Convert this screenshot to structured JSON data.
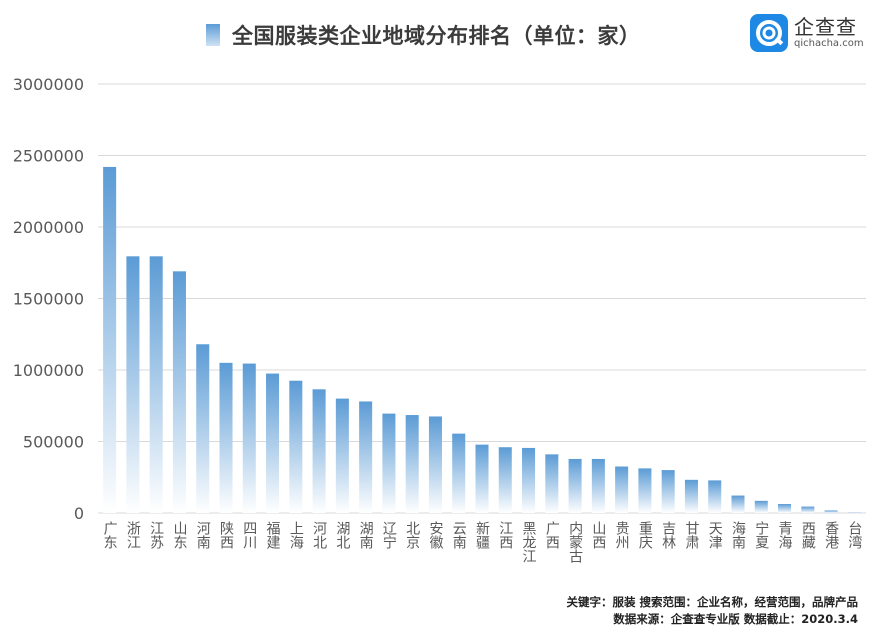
{
  "header": {
    "title": "全国服装类企业地域分布排名（单位：家）",
    "logo_cn": "企查查",
    "logo_en": "qichacha.com"
  },
  "footer": {
    "line1": "关键字：服装  搜索范围：企业名称，经营范围，品牌产品",
    "line2": "数据来源：企查查专业版  数据截止：2020.3.4"
  },
  "colors": {
    "bar_top": "#5b9bd5",
    "bar_bottom": "#ffffff",
    "grid": "#d9d9d9",
    "axis_text": "#595959"
  },
  "chart_data": {
    "type": "bar",
    "title": "全国服装类企业地域分布排名（单位：家）",
    "xlabel": "",
    "ylabel": "",
    "ylim": [
      0,
      3000000
    ],
    "yticks": [
      0,
      500000,
      1000000,
      1500000,
      2000000,
      2500000,
      3000000
    ],
    "grid": true,
    "categories": [
      "广东",
      "浙江",
      "江苏",
      "山东",
      "河南",
      "陕西",
      "四川",
      "福建",
      "上海",
      "河北",
      "湖北",
      "湖南",
      "辽宁",
      "北京",
      "安徽",
      "云南",
      "新疆",
      "江西",
      "黑龙江",
      "广西",
      "内蒙古",
      "山西",
      "贵州",
      "重庆",
      "吉林",
      "甘肃",
      "天津",
      "海南",
      "宁夏",
      "青海",
      "西藏",
      "香港",
      "台湾"
    ],
    "values": [
      2420000,
      1795000,
      1795000,
      1690000,
      1180000,
      1050000,
      1045000,
      975000,
      925000,
      865000,
      800000,
      780000,
      695000,
      685000,
      675000,
      555000,
      478000,
      460000,
      455000,
      410000,
      378000,
      378000,
      325000,
      312000,
      300000,
      232000,
      228000,
      122000,
      85000,
      63000,
      45000,
      18000,
      3000
    ]
  }
}
